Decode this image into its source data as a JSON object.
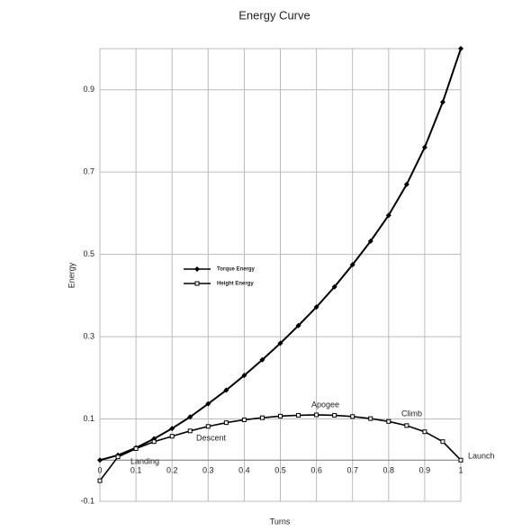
{
  "chart_data": {
    "type": "line",
    "title": "Energy Curve",
    "x_label": "Turns",
    "y_label": "Energy",
    "x": [
      0,
      0.05,
      0.1,
      0.15,
      0.2,
      0.25,
      0.3,
      0.35,
      0.4,
      0.45,
      0.5,
      0.55,
      0.6,
      0.65,
      0.7,
      0.75,
      0.8,
      0.85,
      0.9,
      0.95,
      1
    ],
    "series": [
      {
        "name": "Torque Energy",
        "color": "#000000",
        "marker": "diamond",
        "values": [
          0.0,
          0.012,
          0.03,
          0.052,
          0.077,
          0.105,
          0.137,
          0.17,
          0.206,
          0.244,
          0.284,
          0.327,
          0.372,
          0.421,
          0.475,
          0.532,
          0.595,
          0.67,
          0.76,
          0.87,
          1.0
        ]
      },
      {
        "name": "Height Energy",
        "color": "#000000",
        "marker": "square",
        "values": [
          -0.05,
          0.008,
          0.028,
          0.045,
          0.058,
          0.071,
          0.082,
          0.091,
          0.098,
          0.103,
          0.107,
          0.109,
          0.11,
          0.109,
          0.106,
          0.101,
          0.094,
          0.084,
          0.069,
          0.045,
          0.0
        ]
      }
    ],
    "xlim": [
      0,
      1
    ],
    "ylim": [
      -0.1,
      1.0
    ],
    "xticks": [
      0,
      0.1,
      0.2,
      0.3,
      0.4,
      0.5,
      0.6,
      0.7,
      0.8,
      0.9,
      1
    ],
    "yticks": [
      -0.1,
      0.1,
      0.3,
      0.5,
      0.7,
      0.9
    ],
    "grid": true,
    "legend": "left",
    "annotations": [
      "Landing",
      "Descent",
      "Apogee",
      "Climb",
      "Launch"
    ]
  }
}
